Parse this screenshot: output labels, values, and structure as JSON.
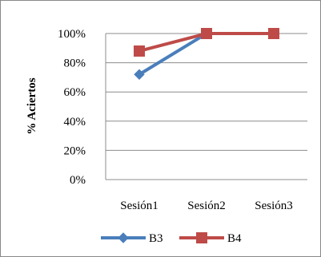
{
  "chart_data": {
    "type": "line",
    "categories": [
      "Sesión1",
      "Sesión2",
      "Sesión3"
    ],
    "series": [
      {
        "name": "B3",
        "values": [
          72,
          100,
          100
        ],
        "color": "#4a7ebb",
        "marker": "diamond"
      },
      {
        "name": "B4",
        "values": [
          88,
          100,
          100
        ],
        "color": "#be4b48",
        "marker": "square"
      }
    ],
    "ylabel": "% Aciertos",
    "ylim": [
      0,
      100
    ],
    "yticks": [
      0,
      20,
      40,
      60,
      80,
      100
    ],
    "ytick_labels": [
      "0%",
      "20%",
      "40%",
      "60%",
      "80%",
      "100%"
    ],
    "grid": true,
    "legend_position": "bottom"
  }
}
